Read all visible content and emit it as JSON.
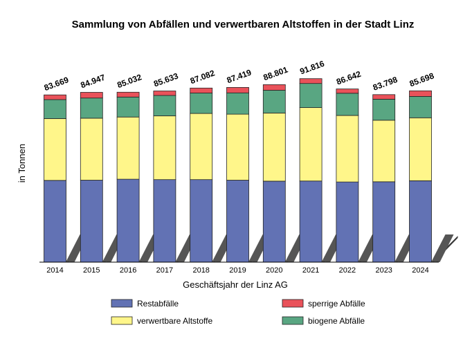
{
  "chart_data": {
    "type": "bar",
    "stacked": true,
    "title": "Sammlung von Abfällen und verwertbaren Altstoffen in der Stadt Linz",
    "xlabel": "Geschäftsjahr der Linz AG",
    "ylabel": "in Tonnen",
    "categories": [
      "2014",
      "2015",
      "2016",
      "2017",
      "2018",
      "2019",
      "2020",
      "2021",
      "2022",
      "2023",
      "2024"
    ],
    "totals_display": [
      "83.669",
      "84.947",
      "85.032",
      "85.633",
      "87.082",
      "87.419",
      "88.801",
      "91.816",
      "86.642",
      "83.798",
      "85.698"
    ],
    "ylim": [
      0,
      100000
    ],
    "series": [
      {
        "name": "Restabfälle",
        "color": "#6272B4",
        "values": [
          40900,
          41000,
          41500,
          41300,
          41300,
          41000,
          40500,
          40600,
          40100,
          40200,
          40700
        ]
      },
      {
        "name": "verwertbare Altstoffe",
        "color": "#FFF68A",
        "values": [
          30900,
          31000,
          31100,
          31900,
          33100,
          33000,
          34100,
          36700,
          33300,
          30800,
          31500
        ]
      },
      {
        "name": "biogene Abfälle",
        "color": "#59A682",
        "values": [
          9500,
          10100,
          10000,
          10200,
          10200,
          10700,
          11400,
          12100,
          11100,
          10500,
          10700
        ]
      },
      {
        "name": "sperrige Abfälle",
        "color": "#E9525A",
        "values": [
          2369,
          2847,
          2432,
          2233,
          2482,
          2719,
          2801,
          2416,
          2142,
          2298,
          2798
        ]
      }
    ],
    "legend": [
      "Restabfälle",
      "sperrige Abfälle",
      "verwertbare Altstoffe",
      "biogene Abfälle"
    ],
    "legend_position": "bottom",
    "grid": false
  }
}
